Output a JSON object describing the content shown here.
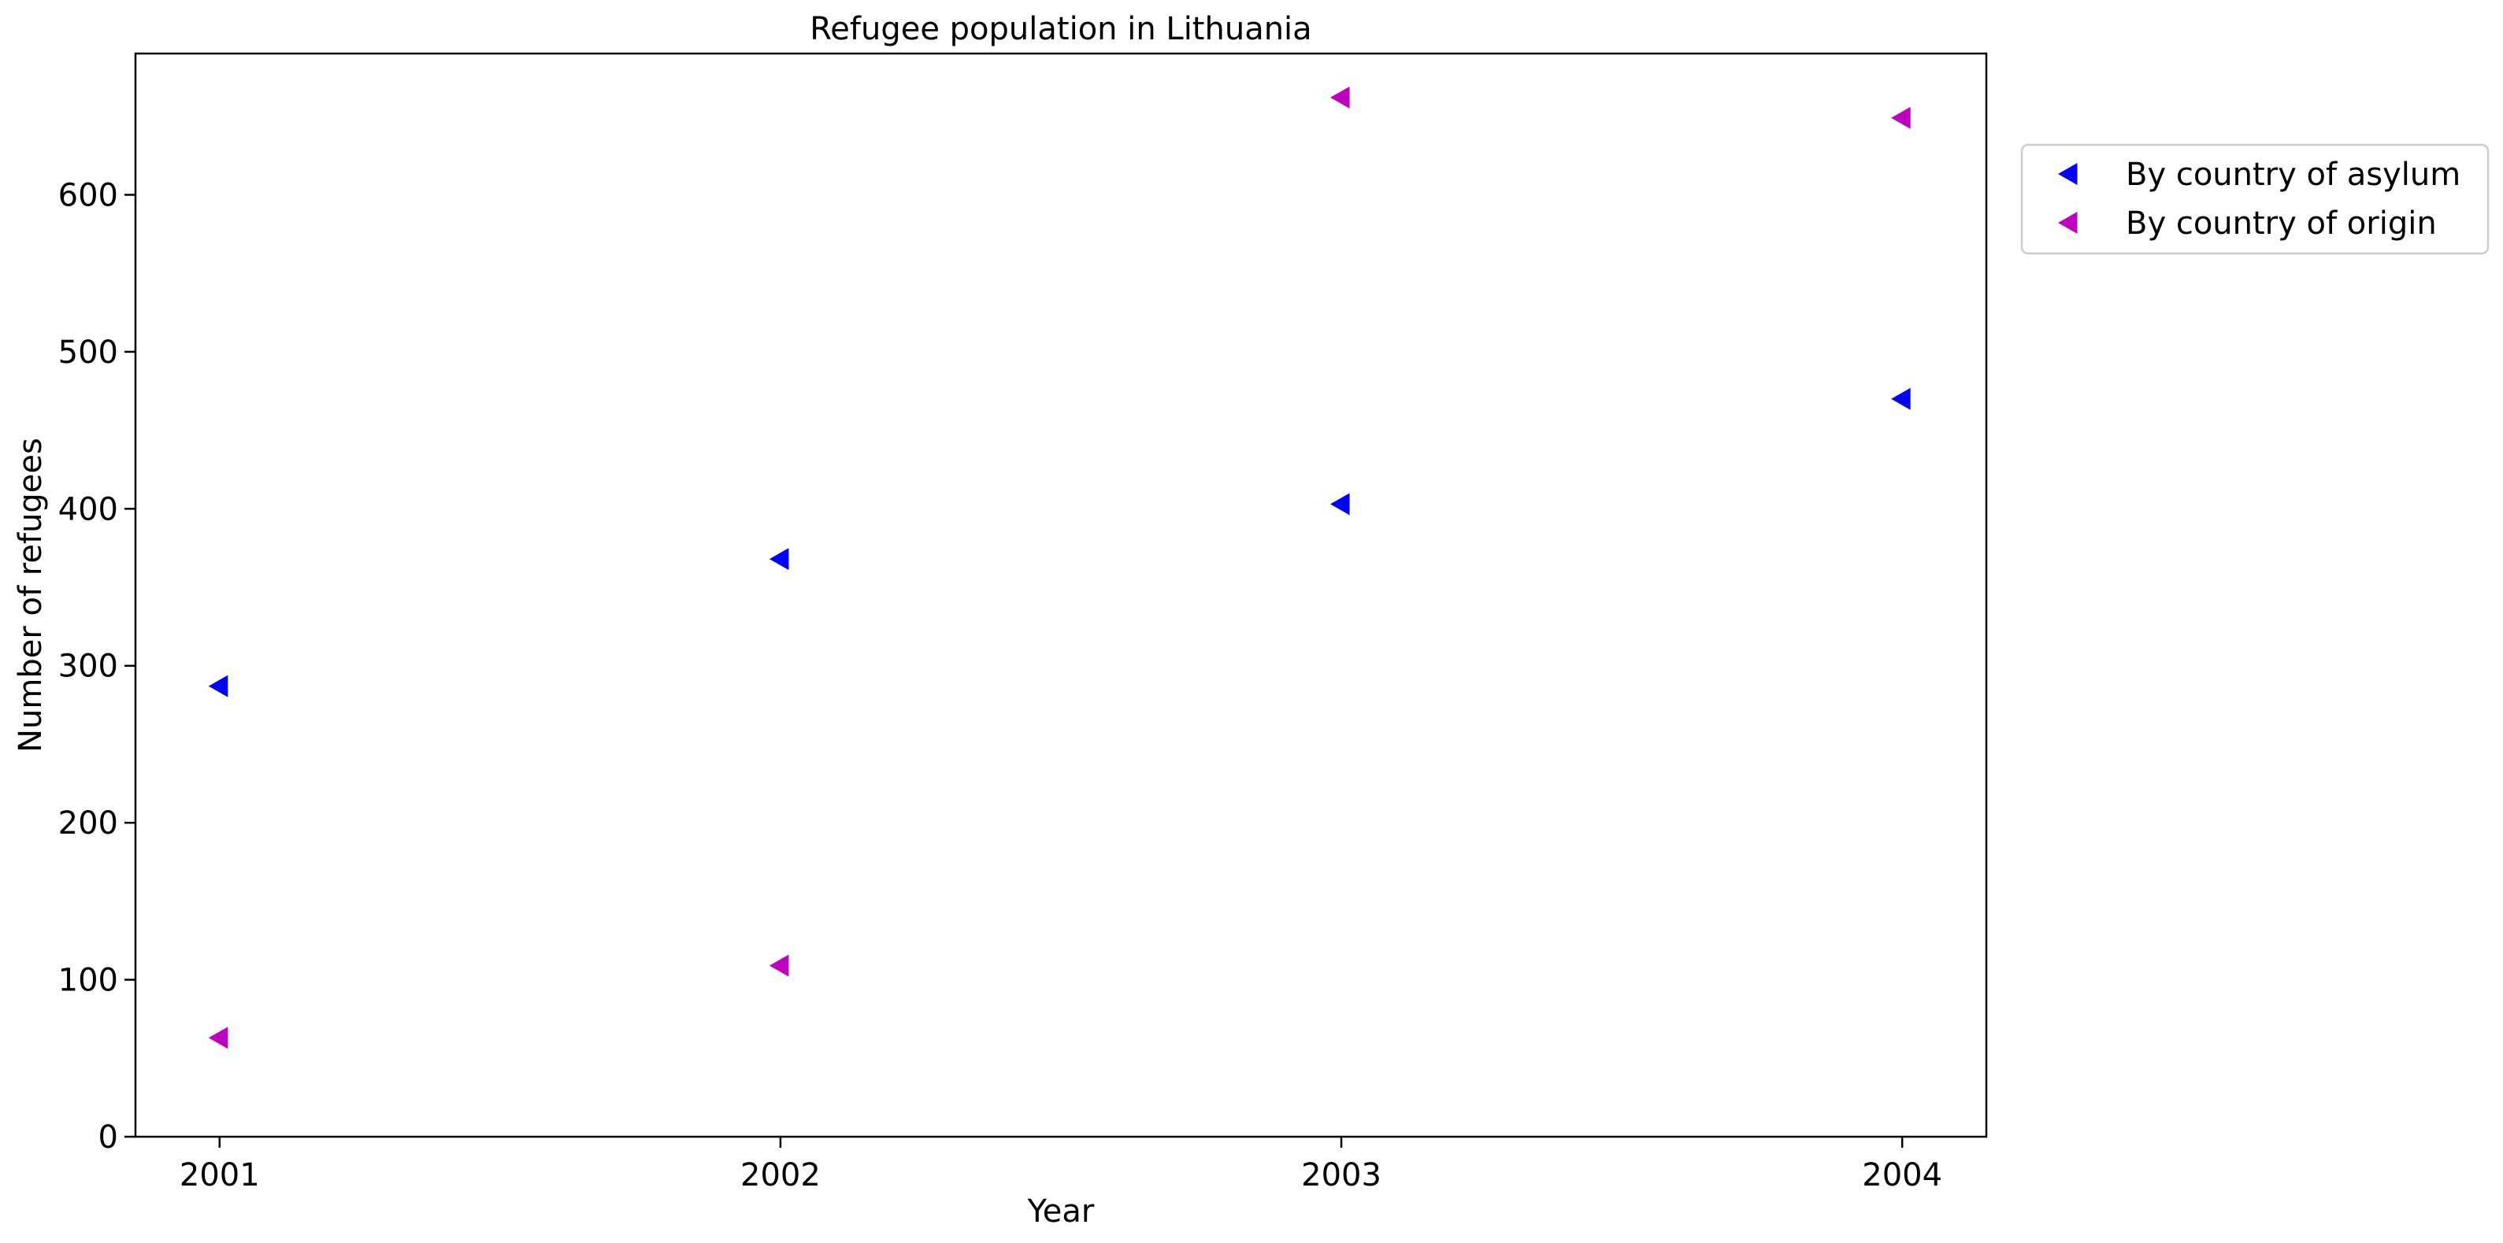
{
  "chart_data": {
    "type": "scatter",
    "title": "Refugee population in Lithuania",
    "xlabel": "Year",
    "ylabel": "Number of refugees",
    "x": [
      2001,
      2002,
      2003,
      2004
    ],
    "x_tick_labels": [
      "2001",
      "2002",
      "2003",
      "2004"
    ],
    "xlim": [
      2000.85,
      2004.15
    ],
    "ylim": [
      0,
      690
    ],
    "y_ticks": [
      0,
      100,
      200,
      300,
      400,
      500,
      600
    ],
    "y_tick_labels": [
      "0",
      "100",
      "200",
      "300",
      "400",
      "500",
      "600"
    ],
    "marker": "triangle-left",
    "grid": false,
    "legend_position": "outside-top-right",
    "series": [
      {
        "name": "By country of asylum",
        "color": "#0000ff",
        "values": [
          287,
          368,
          403,
          470
        ]
      },
      {
        "name": "By country of origin",
        "color": "#bf00bf",
        "values": [
          63,
          109,
          662,
          649
        ]
      }
    ]
  }
}
